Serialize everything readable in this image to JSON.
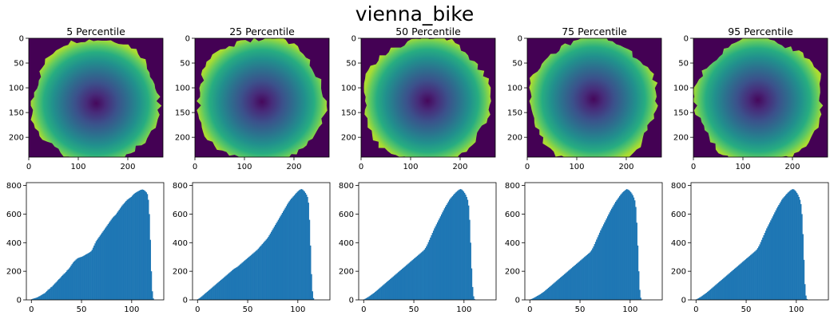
{
  "figure": {
    "title": "vienna_bike"
  },
  "colors": {
    "background": "#440154",
    "bar": "#1f77b4"
  },
  "chart_data": [
    {
      "type": "heatmap",
      "title": "5 Percentile",
      "colormap": "viridis",
      "image_size": [
        271,
        240
      ],
      "center": [
        135,
        127
      ],
      "xticks": [
        0,
        100,
        200
      ],
      "yticks": [
        0,
        50,
        100,
        150,
        200
      ],
      "xlim": [
        0,
        271
      ],
      "ylim": [
        240,
        0
      ]
    },
    {
      "type": "heatmap",
      "title": "25 Percentile",
      "colormap": "viridis",
      "image_size": [
        271,
        240
      ],
      "center": [
        133,
        127
      ],
      "xticks": [
        0,
        100,
        200
      ],
      "yticks": [
        0,
        50,
        100,
        150,
        200
      ],
      "xlim": [
        0,
        271
      ],
      "ylim": [
        240,
        0
      ]
    },
    {
      "type": "heatmap",
      "title": "50 Percentile",
      "colormap": "viridis",
      "image_size": [
        271,
        240
      ],
      "center": [
        133,
        127
      ],
      "xticks": [
        0,
        100,
        200
      ],
      "yticks": [
        0,
        50,
        100,
        150,
        200
      ],
      "xlim": [
        0,
        271
      ],
      "ylim": [
        240,
        0
      ]
    },
    {
      "type": "heatmap",
      "title": "75 Percentile",
      "colormap": "viridis",
      "image_size": [
        271,
        240
      ],
      "center": [
        133,
        127
      ],
      "xticks": [
        0,
        100,
        200
      ],
      "yticks": [
        0,
        50,
        100,
        150,
        200
      ],
      "xlim": [
        0,
        271
      ],
      "ylim": [
        240,
        0
      ]
    },
    {
      "type": "heatmap",
      "title": "95 Percentile",
      "colormap": "viridis",
      "image_size": [
        271,
        240
      ],
      "center": [
        133,
        127
      ],
      "xticks": [
        0,
        100,
        200
      ],
      "yticks": [
        0,
        50,
        100,
        150,
        200
      ],
      "xlim": [
        0,
        271
      ],
      "ylim": [
        240,
        0
      ]
    },
    {
      "type": "bar",
      "title": "",
      "bin_start": 0,
      "bin_width": 1,
      "xticks": [
        0,
        50,
        100
      ],
      "yticks": [
        0,
        200,
        400,
        600,
        800
      ],
      "xlim": [
        -5,
        132
      ],
      "ylim": [
        0,
        820
      ],
      "values": [
        5,
        8,
        10,
        12,
        14,
        17,
        20,
        24,
        27,
        32,
        36,
        40,
        44,
        48,
        55,
        62,
        70,
        75,
        80,
        88,
        92,
        100,
        108,
        115,
        122,
        130,
        138,
        145,
        152,
        160,
        168,
        175,
        182,
        188,
        195,
        205,
        212,
        220,
        228,
        240,
        250,
        260,
        268,
        275,
        282,
        288,
        292,
        295,
        298,
        300,
        302,
        306,
        310,
        314,
        318,
        322,
        326,
        330,
        334,
        340,
        350,
        365,
        380,
        395,
        410,
        420,
        430,
        440,
        450,
        460,
        470,
        480,
        490,
        500,
        510,
        520,
        530,
        540,
        550,
        560,
        570,
        578,
        585,
        592,
        600,
        610,
        620,
        630,
        640,
        650,
        660,
        668,
        676,
        684,
        692,
        700,
        705,
        710,
        715,
        720,
        728,
        735,
        742,
        748,
        752,
        756,
        760,
        764,
        768,
        770,
        772,
        770,
        766,
        760,
        752,
        740,
        700,
        600,
        420,
        200,
        60,
        10
      ]
    },
    {
      "type": "bar",
      "title": "",
      "bin_start": 0,
      "bin_width": 1,
      "xticks": [
        0,
        50,
        100
      ],
      "yticks": [
        0,
        200,
        400,
        600,
        800
      ],
      "xlim": [
        -5,
        132
      ],
      "ylim": [
        0,
        820
      ],
      "values": [
        5,
        10,
        15,
        20,
        26,
        32,
        38,
        44,
        50,
        56,
        62,
        68,
        74,
        80,
        86,
        92,
        98,
        104,
        110,
        116,
        122,
        128,
        134,
        140,
        146,
        152,
        158,
        164,
        170,
        176,
        182,
        188,
        194,
        200,
        206,
        212,
        218,
        222,
        226,
        230,
        236,
        242,
        248,
        254,
        260,
        266,
        272,
        278,
        284,
        290,
        296,
        302,
        308,
        314,
        320,
        326,
        332,
        338,
        344,
        350,
        358,
        366,
        374,
        382,
        390,
        398,
        406,
        414,
        422,
        430,
        440,
        452,
        464,
        476,
        488,
        500,
        512,
        524,
        536,
        548,
        560,
        572,
        584,
        596,
        608,
        620,
        632,
        644,
        656,
        668,
        680,
        690,
        700,
        708,
        716,
        724,
        732,
        740,
        748,
        756,
        762,
        768,
        772,
        775,
        772,
        766,
        758,
        748,
        736,
        720,
        680,
        560,
        380,
        180,
        60,
        12
      ]
    },
    {
      "type": "bar",
      "title": "",
      "bin_start": 0,
      "bin_width": 1,
      "xticks": [
        0,
        50,
        100
      ],
      "yticks": [
        0,
        200,
        400,
        600,
        800
      ],
      "xlim": [
        -5,
        132
      ],
      "ylim": [
        0,
        820
      ],
      "values": [
        4,
        8,
        12,
        16,
        20,
        25,
        30,
        35,
        40,
        45,
        50,
        56,
        62,
        68,
        74,
        80,
        86,
        92,
        98,
        104,
        110,
        116,
        122,
        128,
        134,
        140,
        146,
        152,
        158,
        164,
        170,
        176,
        182,
        188,
        194,
        200,
        206,
        212,
        218,
        224,
        230,
        236,
        242,
        248,
        254,
        260,
        266,
        272,
        278,
        284,
        290,
        296,
        302,
        308,
        314,
        320,
        326,
        332,
        338,
        344,
        352,
        362,
        374,
        388,
        404,
        420,
        436,
        452,
        468,
        484,
        500,
        514,
        528,
        542,
        556,
        570,
        584,
        598,
        612,
        626,
        640,
        652,
        664,
        676,
        688,
        700,
        710,
        718,
        726,
        734,
        742,
        750,
        756,
        762,
        768,
        772,
        775,
        772,
        766,
        758,
        748,
        736,
        720,
        700,
        660,
        560,
        400,
        220,
        90,
        25,
        5
      ]
    },
    {
      "type": "bar",
      "title": "",
      "bin_start": 0,
      "bin_width": 1,
      "xticks": [
        0,
        50,
        100
      ],
      "yticks": [
        0,
        200,
        400,
        600,
        800
      ],
      "xlim": [
        -5,
        132
      ],
      "ylim": [
        0,
        820
      ],
      "values": [
        3,
        6,
        9,
        12,
        16,
        20,
        24,
        28,
        32,
        36,
        40,
        45,
        50,
        55,
        60,
        66,
        72,
        78,
        84,
        90,
        96,
        102,
        108,
        114,
        120,
        126,
        132,
        138,
        144,
        150,
        156,
        162,
        168,
        174,
        180,
        186,
        192,
        198,
        204,
        210,
        216,
        222,
        228,
        234,
        240,
        246,
        252,
        258,
        264,
        270,
        276,
        282,
        288,
        294,
        300,
        306,
        312,
        318,
        324,
        330,
        338,
        348,
        360,
        374,
        390,
        406,
        422,
        438,
        454,
        470,
        486,
        500,
        514,
        528,
        542,
        556,
        570,
        584,
        598,
        612,
        626,
        638,
        650,
        662,
        674,
        686,
        696,
        706,
        716,
        726,
        736,
        744,
        752,
        758,
        764,
        770,
        775,
        772,
        768,
        762,
        754,
        744,
        732,
        716,
        696,
        650,
        540,
        380,
        200,
        70,
        15
      ]
    },
    {
      "type": "bar",
      "title": "",
      "bin_start": 0,
      "bin_width": 1,
      "xticks": [
        0,
        50,
        100
      ],
      "yticks": [
        0,
        200,
        400,
        600,
        800
      ],
      "xlim": [
        -5,
        132
      ],
      "ylim": [
        0,
        820
      ],
      "values": [
        4,
        8,
        12,
        16,
        20,
        25,
        30,
        35,
        40,
        45,
        50,
        56,
        62,
        68,
        74,
        80,
        86,
        92,
        98,
        104,
        110,
        116,
        122,
        128,
        134,
        140,
        146,
        152,
        158,
        164,
        170,
        176,
        182,
        188,
        194,
        200,
        206,
        212,
        218,
        224,
        230,
        236,
        242,
        248,
        254,
        260,
        266,
        272,
        278,
        284,
        290,
        296,
        302,
        308,
        314,
        320,
        326,
        332,
        338,
        344,
        352,
        362,
        374,
        388,
        404,
        420,
        436,
        452,
        468,
        484,
        500,
        514,
        528,
        542,
        556,
        570,
        584,
        598,
        612,
        626,
        640,
        652,
        664,
        676,
        688,
        700,
        710,
        718,
        726,
        734,
        742,
        750,
        756,
        762,
        768,
        772,
        775,
        772,
        766,
        758,
        748,
        736,
        720,
        700,
        670,
        600,
        460,
        280,
        110,
        30,
        6
      ]
    }
  ]
}
